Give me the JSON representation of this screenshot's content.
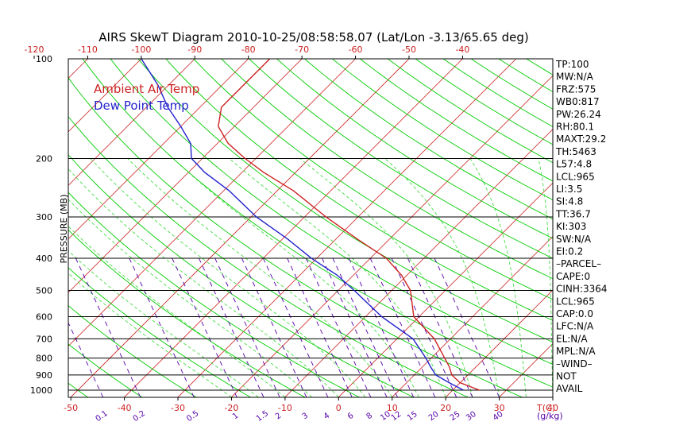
{
  "chart_data": {
    "type": "line",
    "title": "AIRS SkewT Diagram 2010-10-25/08:58:58.07 (Lat/Lon -3.13/65.65 deg)",
    "ylabel": "PRESSURE (MB)",
    "xlabel_bottom_unit": "T(C)",
    "mixing_ratio_unit": "(g/kg)",
    "y_scale": "log",
    "ylim": [
      1050,
      100
    ],
    "xlim": [
      -50,
      40
    ],
    "top_temp_ticks": [
      -120,
      -110,
      -100,
      -90,
      -80,
      -70,
      -60,
      -50,
      -40
    ],
    "bottom_temp_ticks": [
      -50,
      -40,
      -30,
      -20,
      -10,
      0,
      10,
      20,
      30,
      40
    ],
    "pressure_ticks": [
      100,
      200,
      300,
      400,
      500,
      600,
      700,
      800,
      900,
      1000
    ],
    "mixing_ratio_labels": [
      {
        "label": "0.1",
        "t": -44
      },
      {
        "label": "0.2",
        "t": -37
      },
      {
        "label": "0.5",
        "t": -27
      },
      {
        "label": "1",
        "t": -19
      },
      {
        "label": "1.5",
        "t": -14
      },
      {
        "label": "2",
        "t": -11
      },
      {
        "label": "3",
        "t": -6
      },
      {
        "label": "4",
        "t": -2
      },
      {
        "label": "6",
        "t": 2.5
      },
      {
        "label": "8",
        "t": 6
      },
      {
        "label": "10",
        "t": 9
      },
      {
        "label": "12",
        "t": 11
      },
      {
        "label": "15",
        "t": 14
      },
      {
        "label": "20",
        "t": 18
      },
      {
        "label": "25",
        "t": 22
      },
      {
        "label": "30",
        "t": 25
      },
      {
        "label": "40",
        "t": 30
      }
    ],
    "legend": [
      {
        "name": "Ambient Air Temp",
        "color": "#cc2222"
      },
      {
        "name": "Dew Point Temp",
        "color": "#2222cc"
      }
    ],
    "series": [
      {
        "name": "Ambient Air Temp",
        "color": "#cc2222",
        "points": [
          {
            "p": 1000,
            "t": 25
          },
          {
            "p": 950,
            "t": 20
          },
          {
            "p": 900,
            "t": 17
          },
          {
            "p": 850,
            "t": 15
          },
          {
            "p": 800,
            "t": 12.5
          },
          {
            "p": 700,
            "t": 7
          },
          {
            "p": 600,
            "t": -1
          },
          {
            "p": 500,
            "t": -6.5
          },
          {
            "p": 450,
            "t": -11
          },
          {
            "p": 400,
            "t": -17
          },
          {
            "p": 350,
            "t": -26
          },
          {
            "p": 300,
            "t": -36
          },
          {
            "p": 250,
            "t": -47
          },
          {
            "p": 220,
            "t": -56
          },
          {
            "p": 200,
            "t": -62
          },
          {
            "p": 180,
            "t": -68
          },
          {
            "p": 160,
            "t": -73
          },
          {
            "p": 140,
            "t": -76
          },
          {
            "p": 120,
            "t": -76
          },
          {
            "p": 100,
            "t": -76
          }
        ]
      },
      {
        "name": "Dew Point Temp",
        "color": "#2222cc",
        "points": [
          {
            "p": 1000,
            "t": 22
          },
          {
            "p": 950,
            "t": 18
          },
          {
            "p": 900,
            "t": 14
          },
          {
            "p": 850,
            "t": 11.5
          },
          {
            "p": 800,
            "t": 9
          },
          {
            "p": 700,
            "t": 3
          },
          {
            "p": 600,
            "t": -7
          },
          {
            "p": 500,
            "t": -17
          },
          {
            "p": 450,
            "t": -23
          },
          {
            "p": 400,
            "t": -31
          },
          {
            "p": 350,
            "t": -39
          },
          {
            "p": 300,
            "t": -49
          },
          {
            "p": 250,
            "t": -59
          },
          {
            "p": 220,
            "t": -67
          },
          {
            "p": 200,
            "t": -72
          },
          {
            "p": 180,
            "t": -75
          },
          {
            "p": 160,
            "t": -80
          },
          {
            "p": 140,
            "t": -86
          },
          {
            "p": 120,
            "t": -92
          },
          {
            "p": 100,
            "t": -100
          }
        ]
      }
    ],
    "indices": [
      "TP:100",
      "MW:N/A",
      "FRZ:575",
      "WB0:817",
      "PW:26.24",
      "RH:80.1",
      "MAXT:29.2",
      "TH:5463",
      "L57:4.8",
      "LCL:965",
      "LI:3.5",
      "SI:4.8",
      "TT:36.7",
      "KI:303",
      "SW:N/A",
      "EI:0.2",
      "–PARCEL–",
      "CAPE:0",
      "CINH:3364",
      "LCL:965",
      "CAP:0.0",
      "LFC:N/A",
      "EL:N/A",
      "MPL:N/A",
      "–WIND–",
      "NOT",
      "AVAIL"
    ],
    "colors": {
      "dry_adiabat": "#00cc00",
      "moist_adiabat": "#44dd44",
      "isotherm": "#cc2222",
      "mixing_ratio": "#5500aa",
      "isobar": "#000000",
      "axis_label": "#cc2222",
      "mixing_label": "#5500aa"
    },
    "grid": true
  }
}
